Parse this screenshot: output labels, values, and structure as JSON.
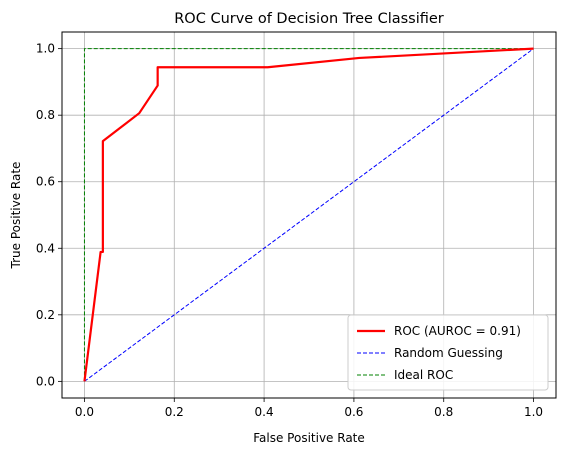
{
  "chart_data": {
    "type": "line",
    "title": "ROC Curve of Decision Tree Classifier",
    "xlabel": "False Positive Rate",
    "ylabel": "True Positive Rate",
    "xlim": [
      -0.05,
      1.05
    ],
    "ylim": [
      -0.05,
      1.05
    ],
    "xticks": [
      0.0,
      0.2,
      0.4,
      0.6,
      0.8,
      1.0
    ],
    "yticks": [
      0.0,
      0.2,
      0.4,
      0.6,
      0.8,
      1.0
    ],
    "xtick_labels": [
      "0.0",
      "0.2",
      "0.4",
      "0.6",
      "0.8",
      "1.0"
    ],
    "ytick_labels": [
      "0.0",
      "0.2",
      "0.4",
      "0.6",
      "0.8",
      "1.0"
    ],
    "grid": true,
    "legend_position": "lower-right",
    "series": [
      {
        "name": "ROC (AUROC = 0.91)",
        "color": "#ff0000",
        "style": "solid",
        "x": [
          0.0,
          0.036,
          0.041,
          0.041,
          0.122,
          0.163,
          0.163,
          0.408,
          0.612,
          1.0
        ],
        "y": [
          0.0,
          0.389,
          0.389,
          0.722,
          0.806,
          0.889,
          0.944,
          0.944,
          0.972,
          1.0
        ]
      },
      {
        "name": "Random Guessing",
        "color": "#0000ff",
        "style": "dashed",
        "x": [
          0.0,
          1.0
        ],
        "y": [
          0.0,
          1.0
        ]
      },
      {
        "name": "Ideal ROC",
        "color": "#008000",
        "style": "dashed",
        "x": [
          0.0,
          0.0,
          1.0
        ],
        "y": [
          0.0,
          1.0,
          1.0
        ]
      }
    ]
  }
}
